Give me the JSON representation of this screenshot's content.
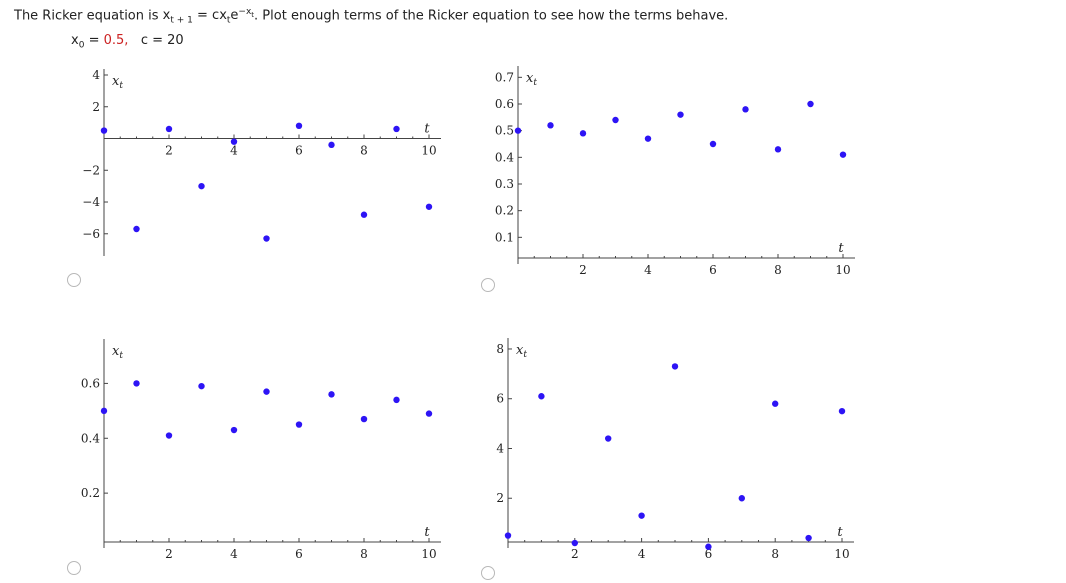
{
  "question": {
    "text_a": "The Ricker equation is ",
    "eq_lhs": "x",
    "eq_lhs_sub": "t + 1",
    "eq_mid": " = cx",
    "eq_mid_sub": "t",
    "eq_e": "e",
    "eq_exp": "−x",
    "eq_exp_sub": "t",
    "text_b": ". Plot enough terms of the Ricker equation to see how the terms behave."
  },
  "params": {
    "x0_label": "x",
    "x0_sub": "0",
    "x0_eq": " = ",
    "x0_value": "0.5,",
    "c_label": "c = 20"
  },
  "colors": {
    "points": "#2d14f5",
    "accent": "#cc2222"
  },
  "chart_data": [
    {
      "type": "scatter",
      "option": "A",
      "xlabel": "t",
      "ylabel": "x_t",
      "ylabel_main": "x",
      "ylabel_sub": "t",
      "xlim": [
        0,
        10.2
      ],
      "ylim": [
        -7.4,
        4.0
      ],
      "xticks": [
        2,
        4,
        6,
        8,
        10
      ],
      "yticks": [
        -6,
        -4,
        -2,
        2,
        4
      ],
      "x": [
        0,
        1,
        2,
        3,
        4,
        5,
        6,
        7,
        8,
        9,
        10
      ],
      "y": [
        0.5,
        -5.7,
        0.6,
        -3.0,
        -0.2,
        -6.3,
        0.8,
        -0.4,
        -4.8,
        0.6,
        -4.3
      ]
    },
    {
      "type": "scatter",
      "option": "B",
      "xlabel": "t",
      "ylabel": "x_t",
      "ylabel_main": "x",
      "ylabel_sub": "t",
      "xlim": [
        0,
        10.2
      ],
      "ylim": [
        0,
        0.72
      ],
      "xticks": [
        2,
        4,
        6,
        8,
        10
      ],
      "yticks": [
        0.1,
        0.2,
        0.3,
        0.4,
        0.5,
        0.6,
        0.7
      ],
      "x": [
        0,
        1,
        2,
        3,
        4,
        5,
        6,
        7,
        8,
        9,
        10
      ],
      "y": [
        0.5,
        0.52,
        0.49,
        0.54,
        0.47,
        0.56,
        0.45,
        0.58,
        0.43,
        0.6,
        0.41
      ]
    },
    {
      "type": "scatter",
      "option": "C",
      "xlabel": "t",
      "ylabel": "x_t",
      "ylabel_main": "x",
      "ylabel_sub": "t",
      "xlim": [
        0,
        10.2
      ],
      "ylim": [
        0,
        0.74
      ],
      "xticks": [
        2,
        4,
        6,
        8,
        10
      ],
      "yticks": [
        0.2,
        0.4,
        0.6
      ],
      "x": [
        0,
        1,
        2,
        3,
        4,
        5,
        6,
        7,
        8,
        9,
        10
      ],
      "y": [
        0.5,
        0.6,
        0.41,
        0.59,
        0.43,
        0.57,
        0.45,
        0.56,
        0.47,
        0.54,
        0.49
      ]
    },
    {
      "type": "scatter",
      "option": "D",
      "xlabel": "t",
      "ylabel": "x_t",
      "ylabel_main": "x",
      "ylabel_sub": "t",
      "xlim": [
        0,
        10.2
      ],
      "ylim": [
        0,
        8.2
      ],
      "xticks": [
        2,
        4,
        6,
        8,
        10
      ],
      "yticks": [
        2,
        4,
        6,
        8
      ],
      "x": [
        0,
        1,
        2,
        3,
        4,
        5,
        6,
        7,
        8,
        9,
        10
      ],
      "y": [
        0.5,
        6.1,
        0.2,
        4.4,
        1.3,
        7.3,
        0.05,
        2.0,
        5.8,
        0.4,
        5.5
      ]
    }
  ]
}
